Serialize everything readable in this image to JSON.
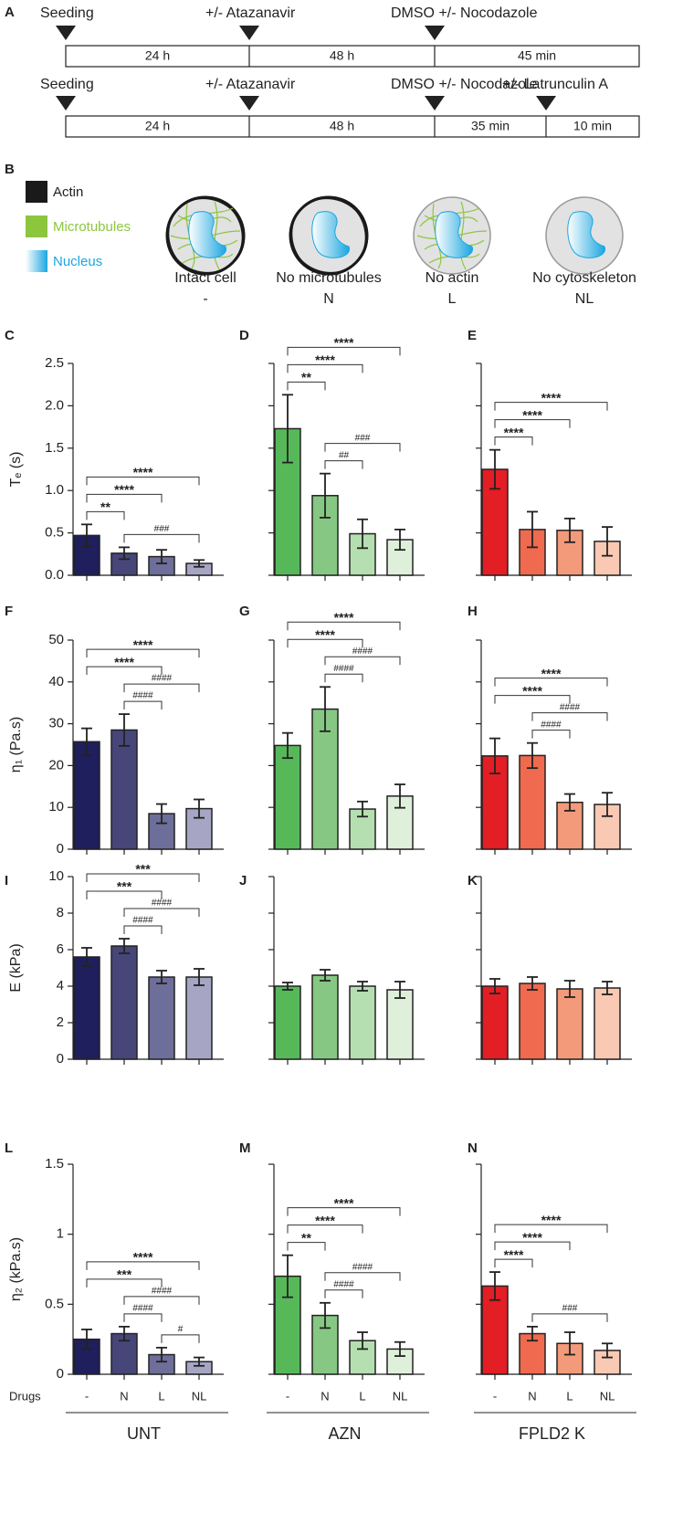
{
  "panel_a": {
    "label": "A",
    "timelines": [
      {
        "events": [
          "Seeding",
          "+/- Atazanavir",
          "DMSO +/- Nocodazole"
        ],
        "intervals": [
          "24 h",
          "48 h",
          "45 min"
        ]
      },
      {
        "events": [
          "Seeding",
          "+/- Atazanavir",
          "DMSO +/- Nocodazole",
          "+/- Latrunculin A"
        ],
        "intervals": [
          "24 h",
          "48 h",
          "35 min",
          "10 min"
        ]
      }
    ]
  },
  "panel_b": {
    "label": "B",
    "legend": [
      "Actin",
      "Microtubules",
      "Nucleus"
    ],
    "cells": [
      {
        "caption": "Intact cell",
        "code": "-"
      },
      {
        "caption": "No microtubules",
        "code": "N"
      },
      {
        "caption": "No actin",
        "code": "L"
      },
      {
        "caption": "No cytoskeleton",
        "code": "NL"
      }
    ]
  },
  "chart_data": [
    {
      "type": "bar",
      "panel": "C",
      "ylabel": "Tₑ (s)",
      "categories": [
        null,
        null,
        null,
        null
      ],
      "values": [
        0.47,
        0.26,
        0.22,
        0.14
      ],
      "errors": [
        0.13,
        0.07,
        0.08,
        0.04
      ],
      "colors": [
        "#1f1f5e",
        "#464679",
        "#6e6e9a",
        "#a6a6c4"
      ],
      "ylim": [
        0,
        2.5
      ],
      "yticks": [
        {
          "value": 0,
          "label": "0.0"
        },
        0.5,
        {
          "value": 1,
          "label": "1.0"
        },
        1.5,
        {
          "value": 2,
          "label": "2.0"
        },
        2.5
      ],
      "tick_labels": true,
      "brackets": [
        {
          "text": "###",
          "from": 1,
          "to": 3
        },
        {
          "text": "**",
          "from": 0,
          "to": 1
        },
        {
          "text": "****",
          "from": 0,
          "to": 2
        },
        {
          "text": "****",
          "from": 0,
          "to": 3
        }
      ]
    },
    {
      "type": "bar",
      "panel": "D",
      "categories": [
        null,
        null,
        null,
        null
      ],
      "values": [
        1.73,
        0.94,
        0.49,
        0.42
      ],
      "errors": [
        0.4,
        0.26,
        0.17,
        0.12
      ],
      "colors": [
        "#57b85a",
        "#86c883",
        "#b5dfb0",
        "#dff0da"
      ],
      "ylim": [
        0,
        2.5
      ],
      "yticks": [
        0,
        0.5,
        1,
        1.5,
        2,
        2.5
      ],
      "tick_labels": false,
      "brackets": [
        {
          "text": "##",
          "from": 1,
          "to": 2
        },
        {
          "text": "###",
          "from": 1,
          "to": 3
        },
        {
          "text": "**",
          "from": 0,
          "to": 1
        },
        {
          "text": "****",
          "from": 0,
          "to": 2
        },
        {
          "text": "****",
          "from": 0,
          "to": 3
        }
      ]
    },
    {
      "type": "bar",
      "panel": "E",
      "categories": [
        null,
        null,
        null,
        null
      ],
      "values": [
        1.25,
        0.54,
        0.53,
        0.4
      ],
      "errors": [
        0.23,
        0.21,
        0.14,
        0.17
      ],
      "colors": [
        "#e31e24",
        "#ef6a4e",
        "#f39a7a",
        "#f9c9b3"
      ],
      "ylim": [
        0,
        2.5
      ],
      "yticks": [
        0,
        0.5,
        1,
        1.5,
        2,
        2.5
      ],
      "tick_labels": false,
      "brackets": [
        {
          "text": "****",
          "from": 0,
          "to": 1
        },
        {
          "text": "****",
          "from": 0,
          "to": 2
        },
        {
          "text": "****",
          "from": 0,
          "to": 3
        }
      ]
    },
    {
      "type": "bar",
      "panel": "F",
      "ylabel": "η₁ (Pa.s)",
      "categories": [
        null,
        null,
        null,
        null
      ],
      "values": [
        25.7,
        28.5,
        8.5,
        9.7
      ],
      "errors": [
        3.2,
        3.8,
        2.3,
        2.2
      ],
      "colors": [
        "#1f1f5e",
        "#464679",
        "#6e6e9a",
        "#a6a6c4"
      ],
      "ylim": [
        0,
        50
      ],
      "yticks": [
        0,
        10,
        20,
        30,
        40,
        50
      ],
      "tick_labels": true,
      "brackets": [
        {
          "text": "####",
          "from": 1,
          "to": 2
        },
        {
          "text": "####",
          "from": 1,
          "to": 3
        },
        {
          "text": "****",
          "from": 0,
          "to": 2
        },
        {
          "text": "****",
          "from": 0,
          "to": 3
        }
      ]
    },
    {
      "type": "bar",
      "panel": "G",
      "categories": [
        null,
        null,
        null,
        null
      ],
      "values": [
        24.8,
        33.5,
        9.6,
        12.7
      ],
      "errors": [
        3,
        5.3,
        1.8,
        2.8
      ],
      "colors": [
        "#57b85a",
        "#86c883",
        "#b5dfb0",
        "#dff0da"
      ],
      "ylim": [
        0,
        50
      ],
      "yticks": [
        0,
        10,
        20,
        30,
        40,
        50
      ],
      "tick_labels": false,
      "brackets": [
        {
          "text": "####",
          "from": 1,
          "to": 2
        },
        {
          "text": "####",
          "from": 1,
          "to": 3
        },
        {
          "text": "****",
          "from": 0,
          "to": 2
        },
        {
          "text": "****",
          "from": 0,
          "to": 3
        }
      ]
    },
    {
      "type": "bar",
      "panel": "H",
      "categories": [
        null,
        null,
        null,
        null
      ],
      "values": [
        22.3,
        22.4,
        11.2,
        10.7
      ],
      "errors": [
        4.2,
        3,
        2,
        2.8
      ],
      "colors": [
        "#e31e24",
        "#ef6a4e",
        "#f39a7a",
        "#f9c9b3"
      ],
      "ylim": [
        0,
        50
      ],
      "yticks": [
        0,
        10,
        20,
        30,
        40,
        50
      ],
      "tick_labels": false,
      "brackets": [
        {
          "text": "####",
          "from": 1,
          "to": 2
        },
        {
          "text": "####",
          "from": 1,
          "to": 3
        },
        {
          "text": "****",
          "from": 0,
          "to": 2
        },
        {
          "text": "****",
          "from": 0,
          "to": 3
        }
      ]
    },
    {
      "type": "bar",
      "panel": "I",
      "ylabel": "E (kPa)",
      "categories": [
        null,
        null,
        null,
        null
      ],
      "values": [
        5.6,
        6.2,
        4.5,
        4.5
      ],
      "errors": [
        0.5,
        0.4,
        0.35,
        0.45
      ],
      "colors": [
        "#1f1f5e",
        "#464679",
        "#6e6e9a",
        "#a6a6c4"
      ],
      "ylim": [
        0,
        10
      ],
      "yticks": [
        0,
        2,
        4,
        6,
        8,
        10
      ],
      "tick_labels": true,
      "brackets": [
        {
          "text": "####",
          "from": 1,
          "to": 2
        },
        {
          "text": "####",
          "from": 1,
          "to": 3
        },
        {
          "text": "***",
          "from": 0,
          "to": 2
        },
        {
          "text": "***",
          "from": 0,
          "to": 3
        }
      ]
    },
    {
      "type": "bar",
      "panel": "J",
      "categories": [
        null,
        null,
        null,
        null
      ],
      "values": [
        4.0,
        4.6,
        4.0,
        3.8
      ],
      "errors": [
        0.2,
        0.3,
        0.25,
        0.45
      ],
      "colors": [
        "#57b85a",
        "#86c883",
        "#b5dfb0",
        "#dff0da"
      ],
      "ylim": [
        0,
        10
      ],
      "yticks": [
        0,
        2,
        4,
        6,
        8,
        10
      ],
      "tick_labels": false,
      "brackets": []
    },
    {
      "type": "bar",
      "panel": "K",
      "categories": [
        null,
        null,
        null,
        null
      ],
      "values": [
        4.0,
        4.15,
        3.85,
        3.9
      ],
      "errors": [
        0.4,
        0.35,
        0.45,
        0.35
      ],
      "colors": [
        "#e31e24",
        "#ef6a4e",
        "#f39a7a",
        "#f9c9b3"
      ],
      "ylim": [
        0,
        10
      ],
      "yticks": [
        0,
        2,
        4,
        6,
        8,
        10
      ],
      "tick_labels": false,
      "brackets": []
    },
    {
      "type": "bar",
      "panel": "L",
      "ylabel": "η₂ (kPa.s)",
      "x_title": "Drugs",
      "xlabel": "UNT",
      "categories": [
        "-",
        "N",
        "L",
        "NL"
      ],
      "values": [
        0.25,
        0.29,
        0.14,
        0.09
      ],
      "errors": [
        0.07,
        0.05,
        0.05,
        0.03
      ],
      "colors": [
        "#1f1f5e",
        "#464679",
        "#6e6e9a",
        "#a6a6c4"
      ],
      "ylim": [
        0,
        1.5
      ],
      "yticks": [
        0,
        0.5,
        1,
        1.5
      ],
      "tick_labels": true,
      "brackets": [
        {
          "text": "#",
          "from": 2,
          "to": 3
        },
        {
          "text": "####",
          "from": 1,
          "to": 2
        },
        {
          "text": "####",
          "from": 1,
          "to": 3
        },
        {
          "text": "***",
          "from": 0,
          "to": 2
        },
        {
          "text": "****",
          "from": 0,
          "to": 3
        }
      ]
    },
    {
      "type": "bar",
      "panel": "M",
      "xlabel": "AZN",
      "categories": [
        "-",
        "N",
        "L",
        "NL"
      ],
      "values": [
        0.7,
        0.42,
        0.24,
        0.18
      ],
      "errors": [
        0.15,
        0.09,
        0.06,
        0.05
      ],
      "colors": [
        "#57b85a",
        "#86c883",
        "#b5dfb0",
        "#dff0da"
      ],
      "ylim": [
        0,
        1.5
      ],
      "yticks": [
        0,
        0.5,
        1,
        1.5
      ],
      "tick_labels": false,
      "brackets": [
        {
          "text": "####",
          "from": 1,
          "to": 2
        },
        {
          "text": "####",
          "from": 1,
          "to": 3
        },
        {
          "text": "**",
          "from": 0,
          "to": 1
        },
        {
          "text": "****",
          "from": 0,
          "to": 2
        },
        {
          "text": "****",
          "from": 0,
          "to": 3
        }
      ]
    },
    {
      "type": "bar",
      "panel": "N",
      "xlabel": "FPLD2 K",
      "categories": [
        "-",
        "N",
        "L",
        "NL"
      ],
      "values": [
        0.63,
        0.29,
        0.22,
        0.17
      ],
      "errors": [
        0.1,
        0.05,
        0.08,
        0.05
      ],
      "colors": [
        "#e31e24",
        "#ef6a4e",
        "#f39a7a",
        "#f9c9b3"
      ],
      "ylim": [
        0,
        1.5
      ],
      "yticks": [
        0,
        0.5,
        1,
        1.5
      ],
      "tick_labels": false,
      "brackets": [
        {
          "text": "###",
          "from": 1,
          "to": 3
        },
        {
          "text": "****",
          "from": 0,
          "to": 1
        },
        {
          "text": "****",
          "from": 0,
          "to": 2
        },
        {
          "text": "****",
          "from": 0,
          "to": 3
        }
      ]
    }
  ]
}
